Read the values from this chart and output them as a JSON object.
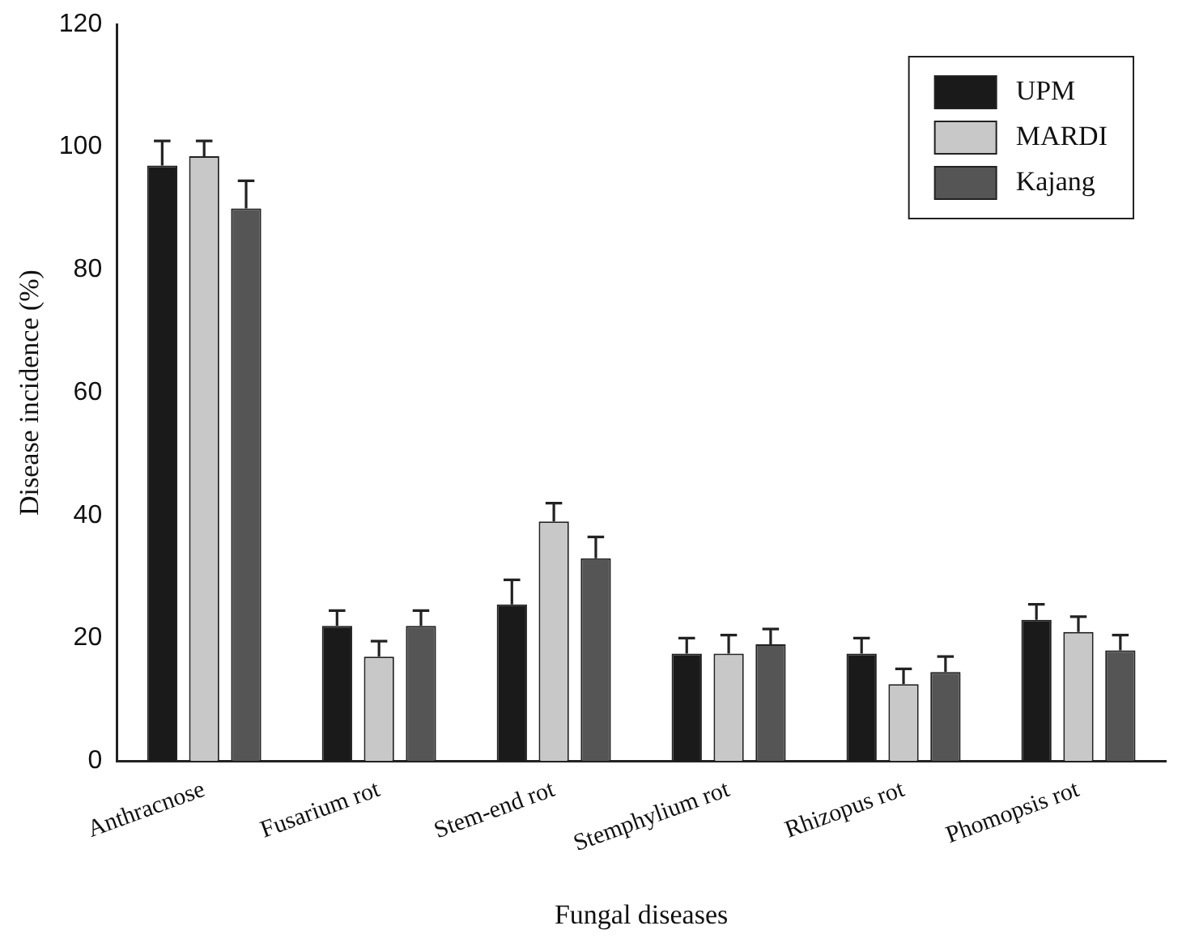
{
  "chart_data": {
    "type": "bar",
    "xlabel": "Fungal diseases",
    "ylabel": "Disease incidence (%)",
    "categories": [
      "Anthracnose",
      "Fusarium rot",
      "Stem-end rot",
      "Stemphylium rot",
      "Rhizopus rot",
      "Phomopsis rot"
    ],
    "series": [
      {
        "name": "UPM",
        "color": "#1a1a1a",
        "values": [
          97,
          22,
          25.5,
          17.5,
          17.5,
          23
        ],
        "errors": [
          [
            97,
            101
          ],
          [
            22,
            24.5
          ],
          [
            25.5,
            29.5
          ],
          [
            17.5,
            20
          ],
          [
            17.5,
            20
          ],
          [
            23,
            25.5
          ]
        ]
      },
      {
        "name": "MARDI",
        "color": "#c8c8c8",
        "values": [
          98.5,
          17,
          39,
          17.5,
          12.5,
          21
        ],
        "errors": [
          [
            98.5,
            101
          ],
          [
            17,
            19.5
          ],
          [
            39,
            42
          ],
          [
            17.5,
            20.5
          ],
          [
            12.5,
            15
          ],
          [
            21,
            23.5
          ]
        ]
      },
      {
        "name": "Kajang",
        "color": "#555555",
        "values": [
          90,
          22,
          33,
          19,
          14.5,
          18
        ],
        "errors": [
          [
            90,
            94.5
          ],
          [
            22,
            24.5
          ],
          [
            33,
            36.5
          ],
          [
            19,
            21.5
          ],
          [
            14.5,
            17
          ],
          [
            18,
            20.5
          ]
        ]
      }
    ],
    "ylim": [
      0,
      120
    ],
    "yticks": [
      0,
      20,
      40,
      60,
      80,
      100,
      120
    ],
    "grid": false,
    "legend": "top right"
  }
}
